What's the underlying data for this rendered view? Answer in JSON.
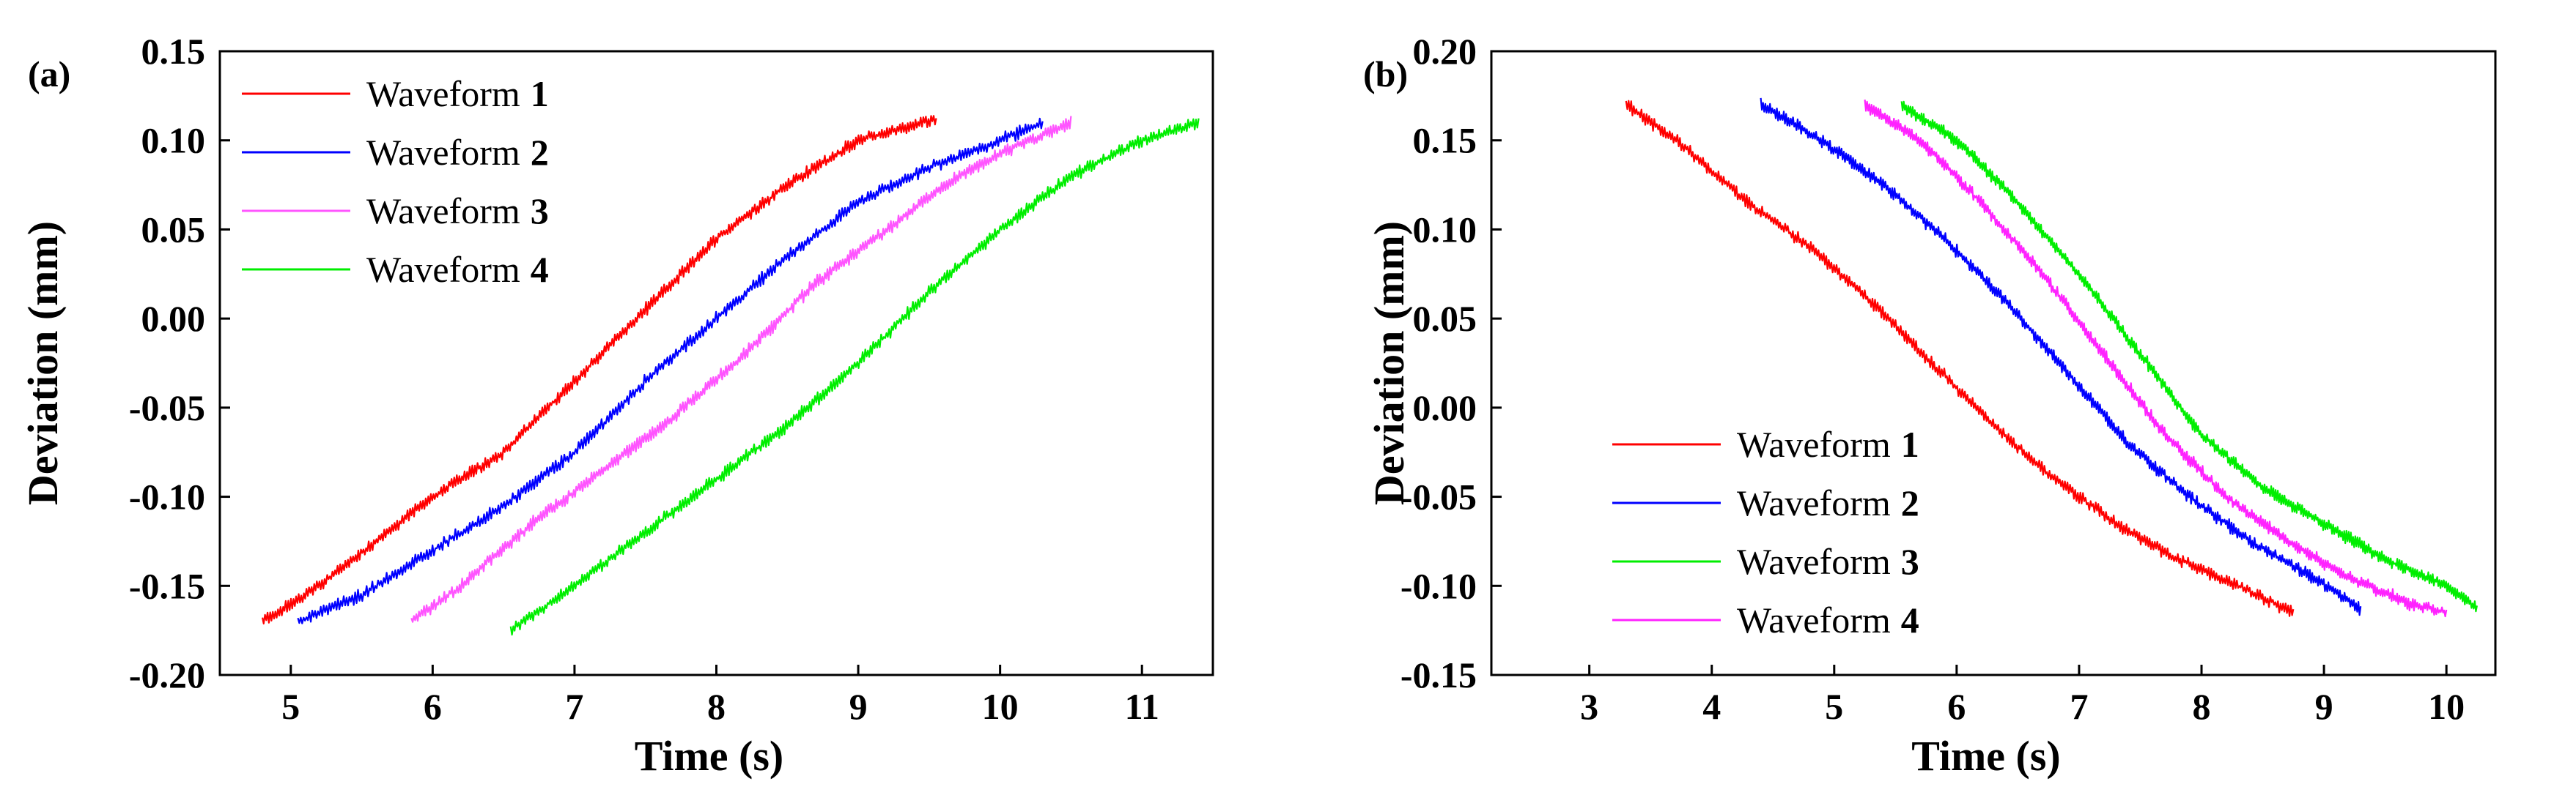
{
  "chart_data": [
    {
      "panel_label": "(a)",
      "type": "line",
      "xlabel": "Time (s)",
      "ylabel": "Deviation (mm)",
      "xlim": [
        4.5,
        11.5
      ],
      "ylim": [
        -0.2,
        0.15
      ],
      "xticks": [
        "5",
        "6",
        "7",
        "8",
        "9",
        "10",
        "11"
      ],
      "yticks": [
        "-0.20",
        "-0.15",
        "-0.10",
        "-0.05",
        "0.00",
        "0.05",
        "0.10",
        "0.15"
      ],
      "legend_position": "top-left",
      "series": [
        {
          "name": "Waveform",
          "number": "1",
          "color": "#ff0000",
          "x": [
            4.8,
            5.2,
            5.6,
            6.0,
            6.5,
            7.0,
            7.5,
            8.0,
            8.5,
            9.0,
            9.55
          ],
          "y": [
            -0.17,
            -0.15,
            -0.125,
            -0.1,
            -0.075,
            -0.035,
            0.005,
            0.045,
            0.075,
            0.1,
            0.112
          ]
        },
        {
          "name": "Waveform",
          "number": "2",
          "color": "#0000ff",
          "x": [
            5.05,
            5.5,
            6.0,
            6.5,
            7.0,
            7.5,
            8.0,
            8.5,
            9.0,
            9.5,
            10.0,
            10.3
          ],
          "y": [
            -0.17,
            -0.155,
            -0.13,
            -0.105,
            -0.075,
            -0.035,
            0.0,
            0.035,
            0.065,
            0.085,
            0.1,
            0.11
          ]
        },
        {
          "name": "Waveform",
          "number": "3",
          "color": "#ff55ff",
          "x": [
            5.85,
            6.2,
            6.7,
            7.2,
            7.7,
            8.2,
            8.7,
            9.2,
            9.7,
            10.2,
            10.5
          ],
          "y": [
            -0.17,
            -0.15,
            -0.115,
            -0.085,
            -0.055,
            -0.02,
            0.02,
            0.05,
            0.08,
            0.1,
            0.11
          ]
        },
        {
          "name": "Waveform",
          "number": "4",
          "color": "#00ee00",
          "x": [
            6.55,
            7.0,
            7.5,
            8.0,
            8.5,
            9.0,
            9.5,
            10.0,
            10.5,
            11.0,
            11.4
          ],
          "y": [
            -0.175,
            -0.15,
            -0.12,
            -0.09,
            -0.06,
            -0.025,
            0.015,
            0.05,
            0.08,
            0.1,
            0.11
          ]
        }
      ]
    },
    {
      "panel_label": "(b)",
      "type": "line",
      "xlabel": "Time (s)",
      "ylabel": "Deviation (mm)",
      "xlim": [
        2.2,
        10.4
      ],
      "ylim": [
        -0.15,
        0.2
      ],
      "xticks": [
        "3",
        "4",
        "5",
        "6",
        "7",
        "8",
        "9",
        "10"
      ],
      "yticks": [
        "-0.15",
        "-0.10",
        "-0.05",
        "0.00",
        "0.05",
        "0.10",
        "0.15",
        "0.20"
      ],
      "legend_position": "bottom-left",
      "series": [
        {
          "name": "Waveform",
          "number": "1",
          "color": "#ff0000",
          "x": [
            3.3,
            3.8,
            4.3,
            4.8,
            5.3,
            5.8,
            6.3,
            6.8,
            7.3,
            7.8,
            8.3,
            8.75
          ],
          "y": [
            0.17,
            0.145,
            0.115,
            0.09,
            0.06,
            0.025,
            -0.01,
            -0.04,
            -0.065,
            -0.085,
            -0.1,
            -0.115
          ]
        },
        {
          "name": "Waveform",
          "number": "2",
          "color": "#0000ff",
          "x": [
            4.4,
            4.9,
            5.4,
            5.9,
            6.4,
            6.9,
            7.4,
            7.9,
            8.4,
            8.9,
            9.3
          ],
          "y": [
            0.17,
            0.15,
            0.125,
            0.095,
            0.06,
            0.02,
            -0.02,
            -0.05,
            -0.075,
            -0.095,
            -0.113
          ]
        },
        {
          "name": "Waveform",
          "number": "3",
          "color": "#00ee00",
          "x": [
            5.55,
            6.0,
            6.5,
            7.0,
            7.5,
            8.0,
            8.5,
            9.0,
            9.5,
            10.0,
            10.25
          ],
          "y": [
            0.17,
            0.15,
            0.115,
            0.075,
            0.03,
            -0.015,
            -0.045,
            -0.065,
            -0.085,
            -0.1,
            -0.113
          ]
        },
        {
          "name": "Waveform",
          "number": "4",
          "color": "#ff22ff",
          "x": [
            5.25,
            5.7,
            6.2,
            6.7,
            7.2,
            7.7,
            8.2,
            8.7,
            9.2,
            9.7,
            10.0
          ],
          "y": [
            0.17,
            0.15,
            0.115,
            0.075,
            0.03,
            -0.015,
            -0.05,
            -0.075,
            -0.095,
            -0.11,
            -0.115
          ]
        }
      ]
    }
  ]
}
